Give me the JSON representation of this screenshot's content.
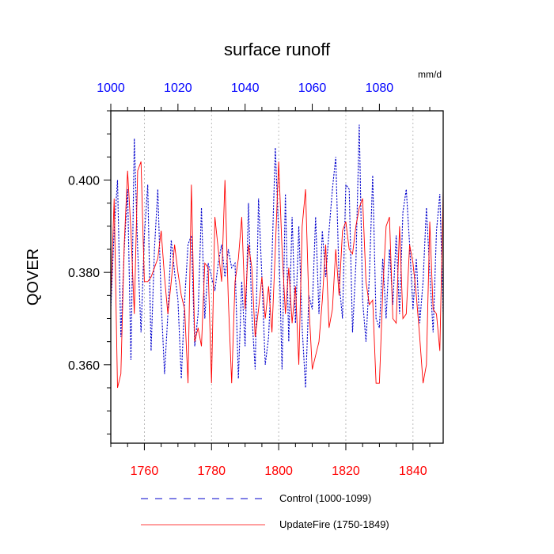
{
  "chart_data": {
    "type": "line",
    "title": "surface runoff",
    "units_label": "mm/d",
    "ylabel": "QOVER",
    "ylim": [
      0.343,
      0.415
    ],
    "yticks": [
      0.36,
      0.38,
      0.4
    ],
    "ytick_labels": [
      "0.360",
      "0.380",
      "0.400"
    ],
    "top_axis": {
      "range": [
        1000,
        1099
      ],
      "ticks": [
        1000,
        1020,
        1040,
        1060,
        1080
      ],
      "labels": [
        "1000",
        "1020",
        "1040",
        "1060",
        "1080"
      ],
      "color": "#0000ff"
    },
    "bottom_axis": {
      "range": [
        1750,
        1849
      ],
      "ticks": [
        1760,
        1780,
        1800,
        1820,
        1840
      ],
      "labels": [
        "1760",
        "1780",
        "1800",
        "1820",
        "1840"
      ],
      "color": "#ff0000"
    },
    "grid": "vertical-dotted",
    "legend_position": "bottom",
    "series": [
      {
        "name": "Control (1000-1099)",
        "axis": "top",
        "color": "#0000cc",
        "style": "dashed",
        "x_start": 1000,
        "values": [
          0.372,
          0.389,
          0.4,
          0.366,
          0.385,
          0.398,
          0.361,
          0.409,
          0.385,
          0.367,
          0.388,
          0.399,
          0.363,
          0.385,
          0.398,
          0.374,
          0.358,
          0.371,
          0.387,
          0.38,
          0.374,
          0.357,
          0.374,
          0.386,
          0.388,
          0.364,
          0.371,
          0.394,
          0.37,
          0.382,
          0.379,
          0.376,
          0.382,
          0.386,
          0.379,
          0.385,
          0.381,
          0.382,
          0.357,
          0.378,
          0.364,
          0.395,
          0.371,
          0.359,
          0.396,
          0.379,
          0.36,
          0.366,
          0.383,
          0.407,
          0.388,
          0.359,
          0.397,
          0.365,
          0.392,
          0.369,
          0.39,
          0.368,
          0.355,
          0.375,
          0.372,
          0.392,
          0.371,
          0.389,
          0.379,
          0.389,
          0.398,
          0.405,
          0.378,
          0.37,
          0.399,
          0.398,
          0.367,
          0.382,
          0.412,
          0.374,
          0.365,
          0.379,
          0.401,
          0.37,
          0.368,
          0.383,
          0.37,
          0.385,
          0.373,
          0.388,
          0.371,
          0.393,
          0.398,
          0.386,
          0.372,
          0.383,
          0.369,
          0.378,
          0.394,
          0.38,
          0.367,
          0.389,
          0.397,
          0.371
        ]
      },
      {
        "name": "UpdateFire (1750-1849)",
        "axis": "bottom",
        "color": "#ff0000",
        "style": "solid",
        "x_start": 1750,
        "values": [
          0.374,
          0.396,
          0.355,
          0.358,
          0.386,
          0.402,
          0.389,
          0.371,
          0.402,
          0.404,
          0.378,
          0.378,
          0.379,
          0.381,
          0.383,
          0.389,
          0.379,
          0.371,
          0.378,
          0.386,
          0.38,
          0.375,
          0.372,
          0.356,
          0.399,
          0.365,
          0.368,
          0.364,
          0.382,
          0.381,
          0.356,
          0.392,
          0.385,
          0.378,
          0.4,
          0.374,
          0.356,
          0.378,
          0.383,
          0.392,
          0.372,
          0.386,
          0.381,
          0.366,
          0.372,
          0.379,
          0.37,
          0.377,
          0.367,
          0.385,
          0.404,
          0.385,
          0.371,
          0.381,
          0.369,
          0.377,
          0.36,
          0.39,
          0.398,
          0.373,
          0.359,
          0.362,
          0.365,
          0.374,
          0.386,
          0.368,
          0.372,
          0.385,
          0.375,
          0.389,
          0.391,
          0.385,
          0.384,
          0.39,
          0.394,
          0.396,
          0.378,
          0.373,
          0.374,
          0.356,
          0.356,
          0.376,
          0.39,
          0.392,
          0.37,
          0.369,
          0.39,
          0.37,
          0.371,
          0.386,
          0.382,
          0.375,
          0.366,
          0.356,
          0.36,
          0.391,
          0.372,
          0.371,
          0.363,
          0.398
        ]
      }
    ]
  }
}
